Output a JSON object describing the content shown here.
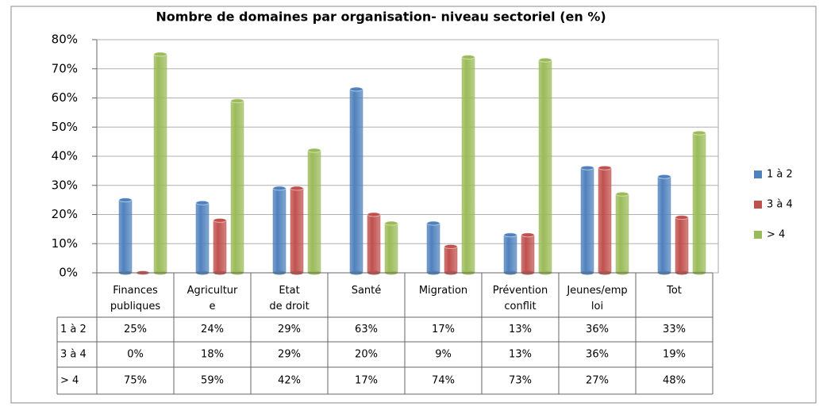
{
  "chart_data": {
    "type": "bar",
    "title": "Nombre de domaines par organisation- niveau sectoriel (en %)",
    "categories": [
      "Finances publiques",
      "Agriculture",
      "Etat de droit",
      "Santé",
      "Migration",
      "Prévention conflit",
      "Jeunes/emploi",
      "Tot"
    ],
    "series": [
      {
        "name": "1 à 2",
        "color": "#4f81bd",
        "values": [
          25,
          24,
          29,
          63,
          17,
          13,
          36,
          33
        ],
        "value_labels": [
          "25%",
          "24%",
          "29%",
          "63%",
          "17%",
          "13%",
          "36%",
          "33%"
        ]
      },
      {
        "name": "3 à 4",
        "color": "#c0504d",
        "values": [
          0,
          18,
          29,
          20,
          9,
          13,
          36,
          19
        ],
        "value_labels": [
          "0%",
          "18%",
          "29%",
          "20%",
          "9%",
          "13%",
          "36%",
          "19%"
        ]
      },
      {
        "name": "> 4",
        "color": "#9bbb59",
        "values": [
          75,
          59,
          42,
          17,
          74,
          73,
          27,
          48
        ],
        "value_labels": [
          "75%",
          "59%",
          "42%",
          "17%",
          "74%",
          "73%",
          "27%",
          "48%"
        ]
      }
    ],
    "ylim": [
      0,
      80
    ],
    "yticks": [
      {
        "value": 0,
        "label": "0%"
      },
      {
        "value": 10,
        "label": "10%"
      },
      {
        "value": 20,
        "label": "20%"
      },
      {
        "value": 30,
        "label": "30%"
      },
      {
        "value": 40,
        "label": "40%"
      },
      {
        "value": 50,
        "label": "50%"
      },
      {
        "value": 60,
        "label": "60%"
      },
      {
        "value": 70,
        "label": "70%"
      },
      {
        "value": 80,
        "label": "80%"
      }
    ],
    "grid": true,
    "legend": "right"
  }
}
